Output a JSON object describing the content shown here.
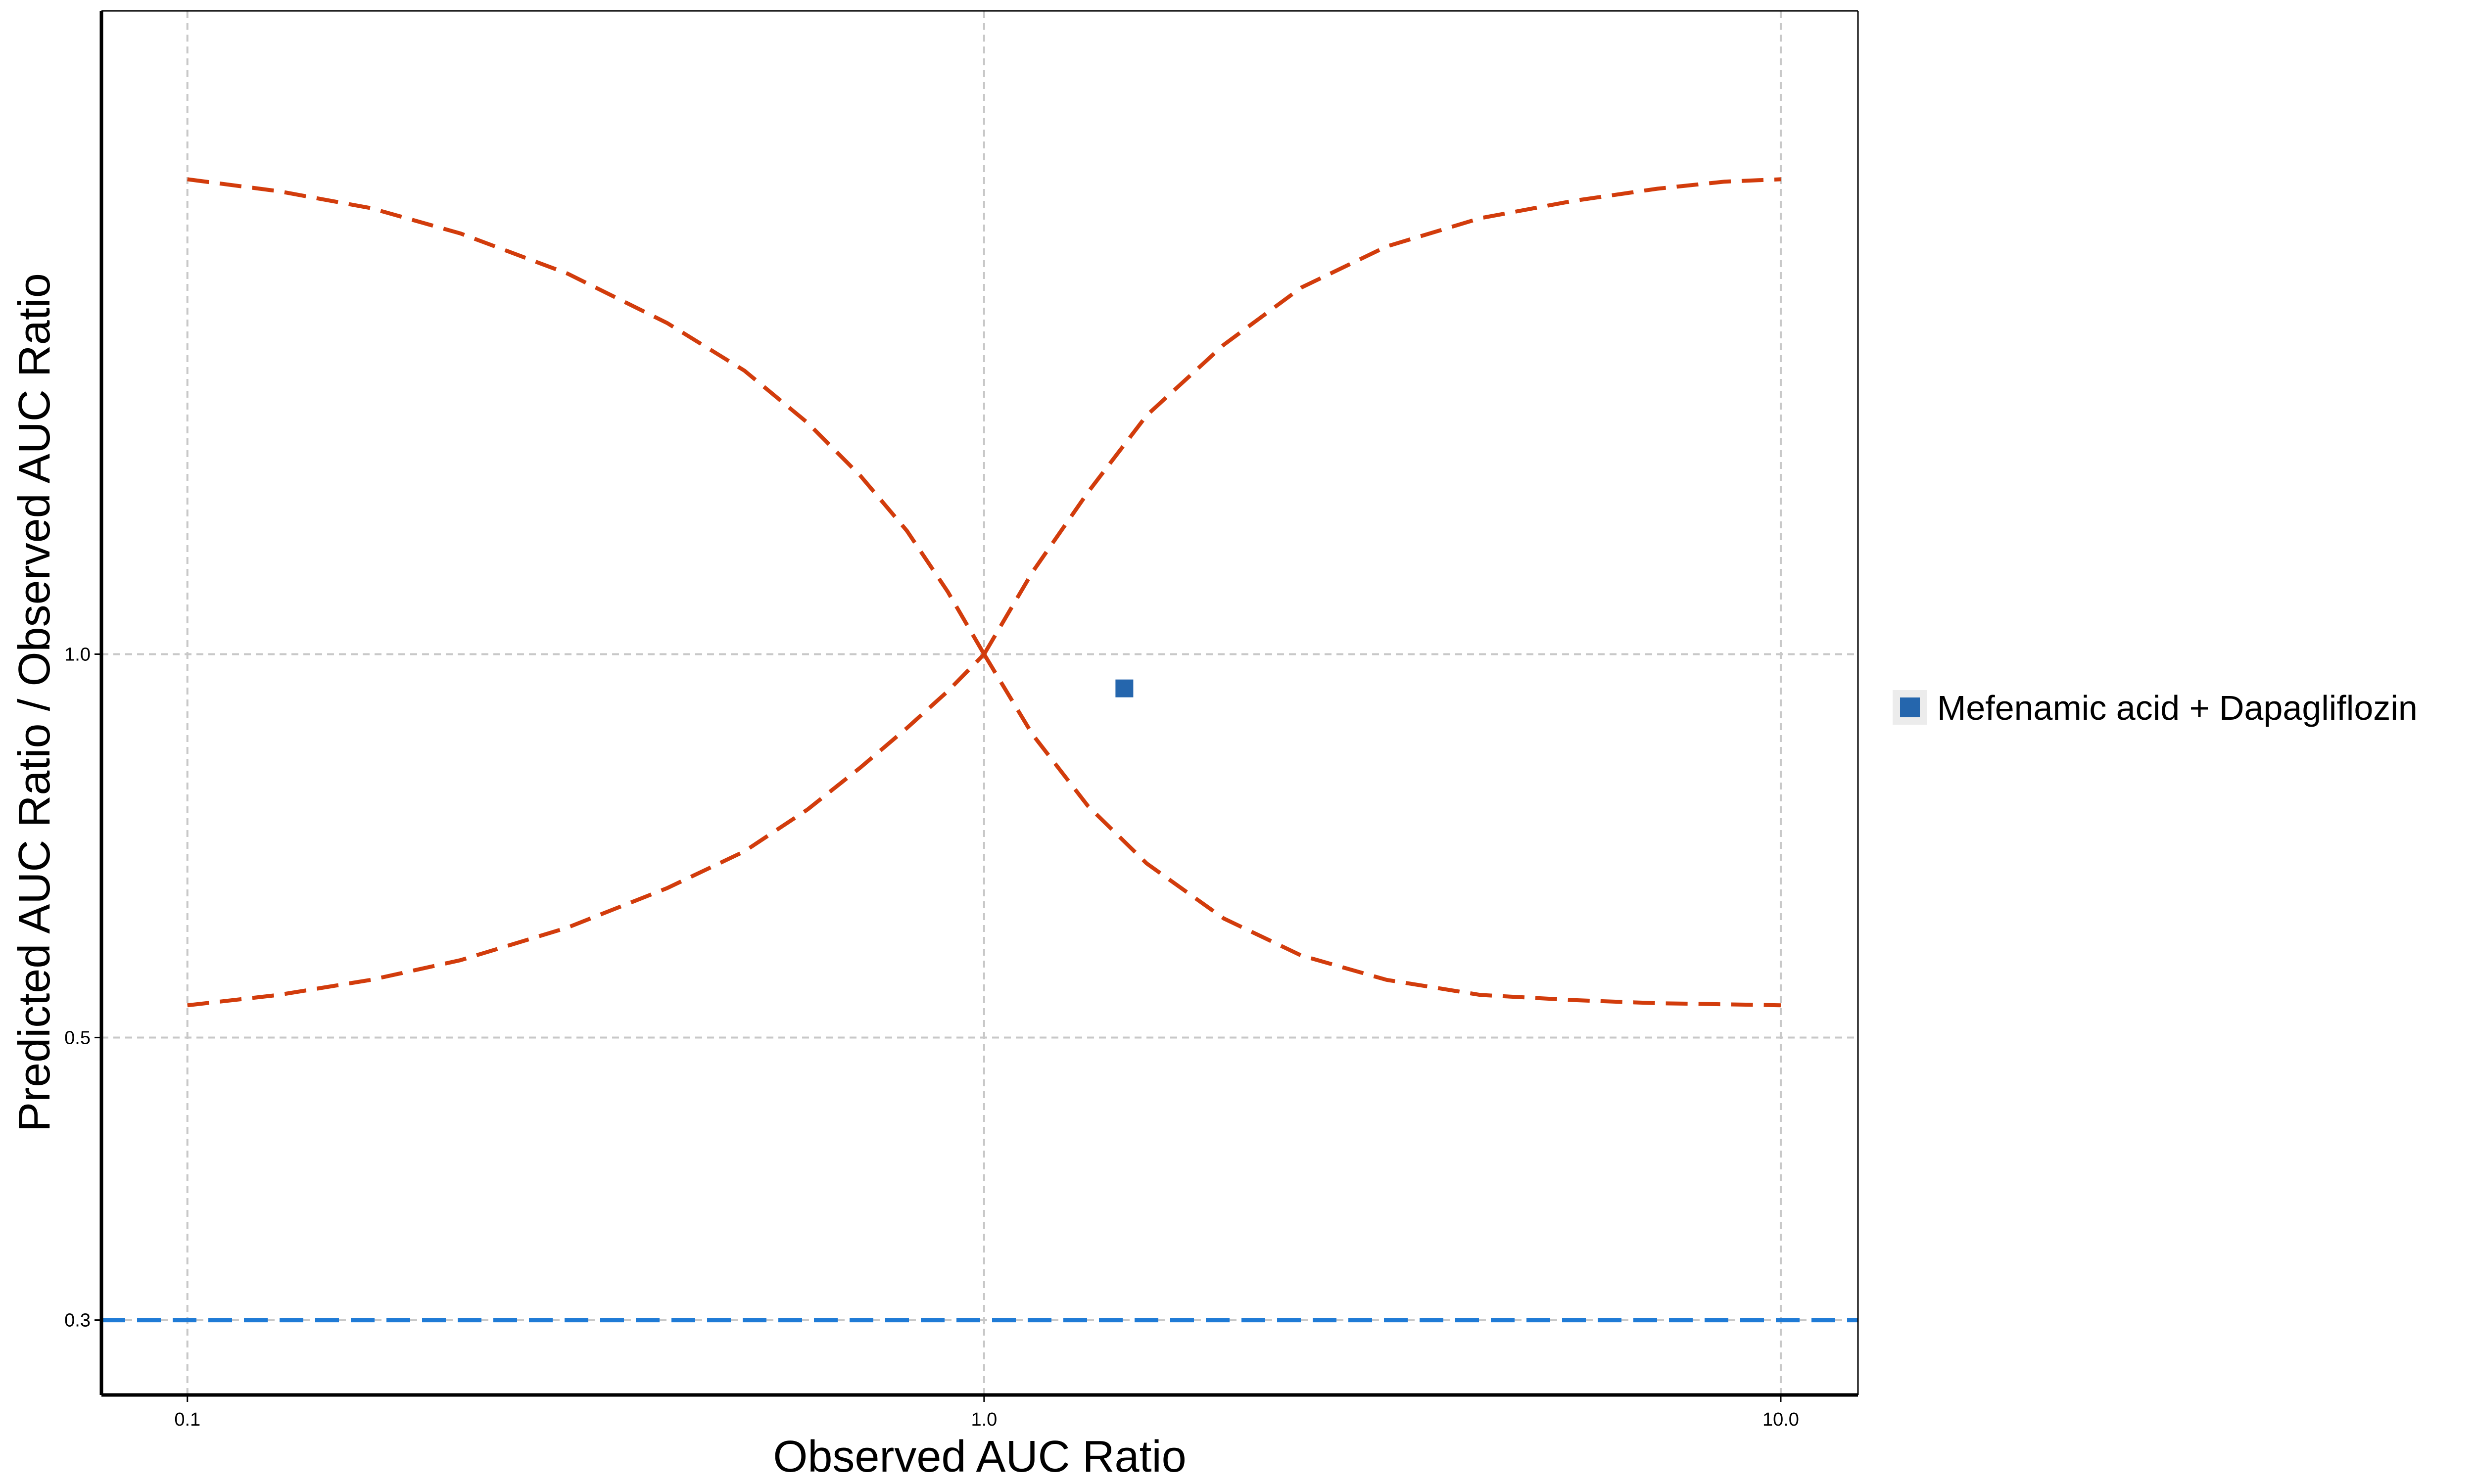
{
  "chart_data": {
    "type": "scatter",
    "title": "",
    "xlabel": "Observed AUC Ratio",
    "ylabel": "Predicted AUC Ratio / Observed AUC Ratio",
    "x_scale": "log",
    "y_scale": "log",
    "xlim": [
      0.078,
      12.5
    ],
    "ylim": [
      0.262,
      3.2
    ],
    "x_ticks": [
      0.1,
      1.0,
      10.0
    ],
    "x_tick_labels": [
      "0.1",
      "1.0",
      "10.0"
    ],
    "y_ticks": [
      0.3,
      0.5,
      1.0
    ],
    "y_tick_labels": [
      "0.3",
      "0.5",
      "1.0"
    ],
    "grid": true,
    "legend_placement": "right",
    "series": [
      {
        "name": "Mefenamic acid + Dapagliflozin",
        "marker": "square",
        "color": "#2566ad",
        "x": [
          1.5
        ],
        "y": [
          0.94
        ]
      }
    ],
    "reference_curves": {
      "color": "#d23c0c",
      "style": "dashed",
      "description_formula": "Guest limits: upper = (1 + 2(x-1)) / x-ish shape; lower = reciprocal",
      "x": [
        0.1,
        0.13,
        0.17,
        0.22,
        0.3,
        0.4,
        0.5,
        0.6,
        0.7,
        0.8,
        0.9,
        1.0,
        1.15,
        1.35,
        1.6,
        2.0,
        2.5,
        3.2,
        4.2,
        5.5,
        7.0,
        8.5,
        10.0
      ],
      "upper": [
        2.36,
        2.31,
        2.24,
        2.14,
        1.99,
        1.82,
        1.67,
        1.52,
        1.38,
        1.25,
        1.12,
        1.0,
        1.16,
        1.34,
        1.54,
        1.75,
        1.94,
        2.09,
        2.2,
        2.27,
        2.32,
        2.35,
        2.36
      ],
      "lower": [
        0.53,
        0.54,
        0.555,
        0.575,
        0.61,
        0.655,
        0.7,
        0.755,
        0.815,
        0.875,
        0.935,
        1.0,
        0.865,
        0.76,
        0.685,
        0.62,
        0.58,
        0.555,
        0.54,
        0.535,
        0.532,
        0.531,
        0.53
      ]
    },
    "reference_line": {
      "y": 0.3,
      "color": "#1f7bd6",
      "style": "dashed"
    }
  }
}
